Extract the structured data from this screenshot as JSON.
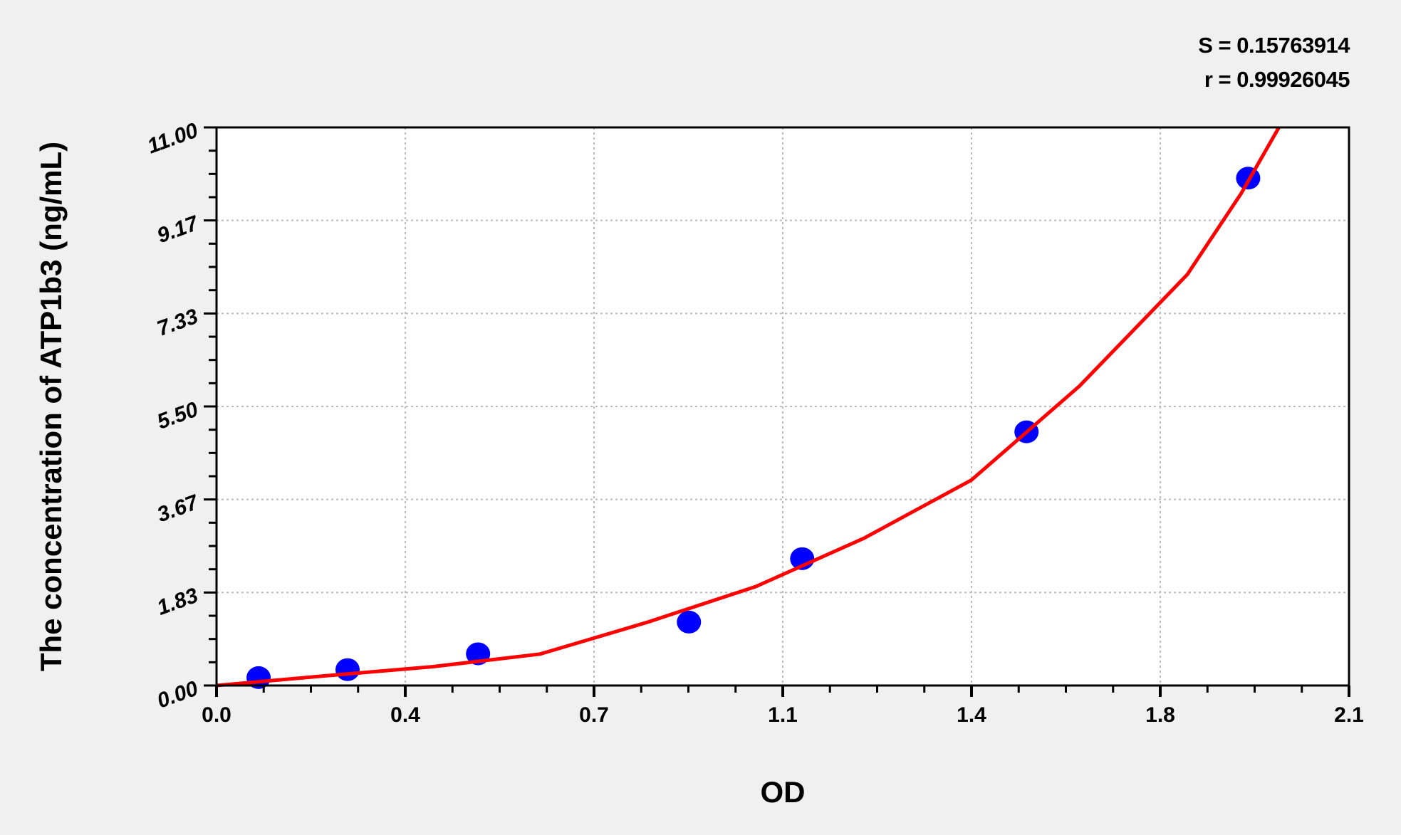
{
  "chart_data": {
    "type": "scatter",
    "xlabel": "OD",
    "ylabel": "The concentration of ATP1b3 (ng/mL)",
    "xlim": [
      0,
      2.1
    ],
    "ylim": [
      0,
      11
    ],
    "x_tick_values": [
      0,
      0.35,
      0.7,
      1.05,
      1.4,
      1.75,
      2.1
    ],
    "x_tick_labels": [
      "0.0",
      "0.4",
      "0.7",
      "1.1",
      "1.4",
      "1.8",
      "2.1"
    ],
    "y_tick_values": [
      0,
      1.8333,
      3.6667,
      5.5,
      7.3333,
      9.1667,
      11
    ],
    "y_tick_labels": [
      "0.00",
      "1.83",
      "3.67",
      "5.50",
      "7.33",
      "9.17",
      "11.00"
    ],
    "grid": true,
    "points": {
      "x": [
        0.078,
        0.243,
        0.485,
        0.876,
        1.086,
        1.502,
        1.913
      ],
      "y": [
        0.156,
        0.313,
        0.625,
        1.25,
        2.5,
        5,
        10
      ],
      "color": "#0000ff"
    },
    "fit_curve": {
      "x": [
        0,
        0.2,
        0.4,
        0.6,
        0.8,
        1.0,
        1.2,
        1.4,
        1.6,
        1.8,
        1.9,
        1.97
      ],
      "y": [
        0,
        0.19,
        0.37,
        0.62,
        1.25,
        1.95,
        2.9,
        4.05,
        5.9,
        8.1,
        9.7,
        11.0
      ],
      "color": "#ff0000"
    },
    "annotations": {
      "s": "S = 0.15763914",
      "r": "r = 0.99926045"
    }
  }
}
